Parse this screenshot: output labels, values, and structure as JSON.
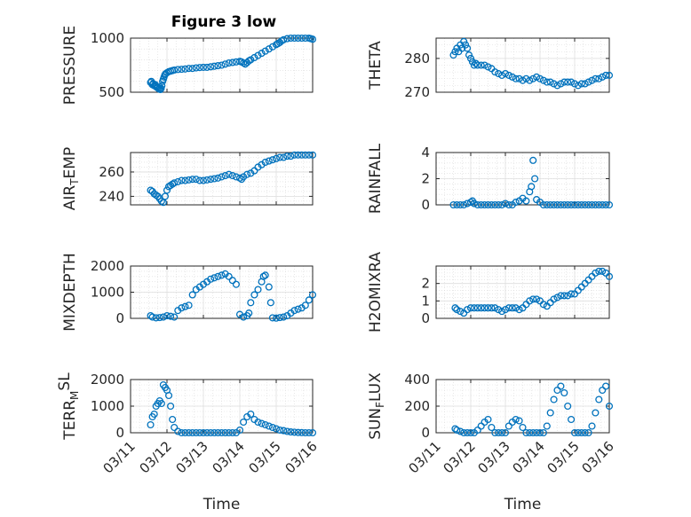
{
  "figure": {
    "title": "Figure 3 low",
    "x_axis_label": "Time",
    "x_tick_labels": [
      "03/11",
      "03/12",
      "03/13",
      "03/14",
      "03/15",
      "03/16"
    ],
    "marker_color": "#0072BD"
  },
  "chart_data": [
    {
      "type": "scatter",
      "ylabel": "PRESSURE",
      "ylabel_parts": [
        [
          "PRESSURE",
          ""
        ]
      ],
      "ylim": [
        500,
        1000
      ],
      "yticks": [
        500,
        1000
      ],
      "xlim": [
        "03/11",
        "03/16"
      ],
      "x_days": [
        0.55,
        0.57,
        0.6,
        0.62,
        0.65,
        0.68,
        0.7,
        0.72,
        0.75,
        0.78,
        0.8,
        0.82,
        0.84,
        0.86,
        0.88,
        0.9,
        0.92,
        0.94,
        0.96,
        1.0,
        1.05,
        1.1,
        1.15,
        1.2,
        1.3,
        1.4,
        1.5,
        1.6,
        1.7,
        1.8,
        1.9,
        2.0,
        2.1,
        2.2,
        2.3,
        2.4,
        2.5,
        2.6,
        2.7,
        2.8,
        2.9,
        3.0,
        3.05,
        3.1,
        3.15,
        3.2,
        3.25,
        3.3,
        3.4,
        3.5,
        3.6,
        3.7,
        3.8,
        3.9,
        4.0,
        4.05,
        4.1,
        4.15,
        4.2,
        4.3,
        4.4,
        4.5,
        4.6,
        4.7,
        4.8,
        4.9,
        4.95,
        5.0
      ],
      "y_values": [
        590,
        600,
        570,
        580,
        560,
        570,
        555,
        545,
        540,
        530,
        540,
        525,
        535,
        560,
        600,
        620,
        640,
        660,
        670,
        680,
        690,
        695,
        700,
        705,
        710,
        712,
        715,
        720,
        720,
        725,
        728,
        730,
        730,
        735,
        740,
        745,
        750,
        760,
        770,
        775,
        780,
        785,
        780,
        770,
        760,
        775,
        790,
        800,
        820,
        840,
        860,
        880,
        900,
        920,
        940,
        950,
        960,
        975,
        985,
        995,
        1000,
        1005,
        1005,
        1005,
        1005,
        1000,
        995,
        990
      ]
    },
    {
      "type": "scatter",
      "ylabel": "THETA",
      "ylabel_parts": [
        [
          "THETA",
          ""
        ]
      ],
      "ylim": [
        270,
        286
      ],
      "yticks": [
        270,
        280
      ],
      "xlim": [
        "03/11",
        "03/16"
      ],
      "x_days": [
        0.5,
        0.55,
        0.6,
        0.65,
        0.7,
        0.75,
        0.8,
        0.85,
        0.9,
        0.95,
        1.0,
        1.05,
        1.1,
        1.15,
        1.2,
        1.3,
        1.4,
        1.5,
        1.6,
        1.7,
        1.8,
        1.9,
        2.0,
        2.1,
        2.2,
        2.3,
        2.4,
        2.5,
        2.6,
        2.7,
        2.8,
        2.9,
        3.0,
        3.1,
        3.2,
        3.3,
        3.4,
        3.5,
        3.6,
        3.7,
        3.8,
        3.9,
        4.0,
        4.1,
        4.2,
        4.3,
        4.4,
        4.5,
        4.6,
        4.7,
        4.8,
        4.9,
        5.0
      ],
      "y_values": [
        281,
        282,
        283,
        282,
        284,
        283,
        285,
        284,
        283,
        281,
        280,
        279,
        278,
        278.5,
        278,
        278,
        278,
        277.5,
        277,
        276,
        275.5,
        275,
        275.5,
        275,
        274.5,
        274,
        274,
        273.5,
        274,
        273.5,
        274,
        274.5,
        274,
        273.5,
        273,
        273,
        272.5,
        272,
        272.5,
        273,
        273,
        273,
        272.5,
        272,
        272.5,
        272.5,
        273,
        273.5,
        274,
        274,
        274.5,
        275,
        275
      ]
    },
    {
      "type": "scatter",
      "ylabel": "AIR_TEMP",
      "ylabel_parts": [
        [
          "AIR",
          ""
        ],
        [
          "T",
          "sub"
        ],
        [
          "EMP",
          ""
        ]
      ],
      "ylim": [
        233,
        276
      ],
      "yticks": [
        240,
        260
      ],
      "xlim": [
        "03/11",
        "03/16"
      ],
      "x_days": [
        0.55,
        0.6,
        0.65,
        0.7,
        0.75,
        0.8,
        0.85,
        0.9,
        0.95,
        1.0,
        1.05,
        1.1,
        1.15,
        1.2,
        1.3,
        1.4,
        1.5,
        1.6,
        1.7,
        1.8,
        1.9,
        2.0,
        2.1,
        2.2,
        2.3,
        2.4,
        2.5,
        2.6,
        2.7,
        2.8,
        2.9,
        3.0,
        3.05,
        3.1,
        3.2,
        3.3,
        3.4,
        3.5,
        3.6,
        3.7,
        3.8,
        3.9,
        4.0,
        4.1,
        4.2,
        4.3,
        4.4,
        4.5,
        4.6,
        4.7,
        4.8,
        4.9,
        5.0
      ],
      "y_values": [
        245,
        244,
        242,
        241,
        240,
        238,
        236,
        235,
        240,
        245,
        248,
        249,
        250,
        251,
        252,
        253,
        253,
        253.5,
        254,
        254,
        253,
        253,
        253.5,
        254,
        254.5,
        255,
        256,
        257,
        258,
        257,
        256,
        255,
        254,
        256,
        258,
        259,
        261,
        264,
        266,
        268,
        269,
        270,
        271,
        272,
        272,
        273,
        273,
        274,
        274,
        274,
        274,
        274,
        274
      ]
    },
    {
      "type": "scatter",
      "ylabel": "RAINFALL",
      "ylabel_parts": [
        [
          "RAINFALL",
          ""
        ]
      ],
      "ylim": [
        0,
        4
      ],
      "yticks": [
        0,
        2,
        4
      ],
      "xlim": [
        "03/11",
        "03/16"
      ],
      "x_days": [
        0.5,
        0.6,
        0.7,
        0.8,
        0.9,
        1.0,
        1.05,
        1.1,
        1.2,
        1.3,
        1.4,
        1.5,
        1.6,
        1.7,
        1.8,
        1.9,
        2.0,
        2.1,
        2.2,
        2.3,
        2.4,
        2.5,
        2.6,
        2.7,
        2.75,
        2.8,
        2.85,
        2.9,
        3.0,
        3.1,
        3.2,
        3.3,
        3.4,
        3.5,
        3.6,
        3.7,
        3.8,
        3.9,
        4.0,
        4.1,
        4.2,
        4.3,
        4.4,
        4.5,
        4.6,
        4.7,
        4.8,
        4.9,
        5.0
      ],
      "y_values": [
        0,
        0,
        0,
        0,
        0.1,
        0.2,
        0.3,
        0.1,
        0,
        0,
        0,
        0,
        0,
        0,
        0,
        0,
        0.1,
        0,
        0,
        0.2,
        0.3,
        0.5,
        0.3,
        1.0,
        1.4,
        3.4,
        2.0,
        0.4,
        0.2,
        0,
        0,
        0,
        0,
        0,
        0,
        0,
        0,
        0,
        0,
        0,
        0,
        0,
        0,
        0,
        0,
        0,
        0,
        0,
        0
      ]
    },
    {
      "type": "scatter",
      "ylabel": "MIXDEPTH",
      "ylabel_parts": [
        [
          "MIXDEPTH",
          ""
        ]
      ],
      "ylim": [
        0,
        2000
      ],
      "yticks": [
        0,
        1000,
        2000
      ],
      "xlim": [
        "03/11",
        "03/16"
      ],
      "x_days": [
        0.55,
        0.6,
        0.7,
        0.8,
        0.9,
        1.0,
        1.1,
        1.2,
        1.3,
        1.4,
        1.5,
        1.6,
        1.7,
        1.8,
        1.9,
        2.0,
        2.1,
        2.2,
        2.3,
        2.4,
        2.5,
        2.6,
        2.7,
        2.8,
        2.9,
        3.0,
        3.1,
        3.2,
        3.25,
        3.3,
        3.4,
        3.5,
        3.6,
        3.65,
        3.7,
        3.8,
        3.85,
        3.9,
        4.0,
        4.1,
        4.2,
        4.3,
        4.4,
        4.5,
        4.6,
        4.7,
        4.8,
        4.9,
        5.0
      ],
      "y_values": [
        100,
        50,
        20,
        30,
        50,
        100,
        80,
        50,
        300,
        400,
        450,
        500,
        900,
        1100,
        1200,
        1300,
        1400,
        1500,
        1550,
        1600,
        1650,
        1700,
        1600,
        1450,
        1300,
        150,
        50,
        100,
        200,
        600,
        900,
        1100,
        1400,
        1600,
        1650,
        1200,
        600,
        20,
        10,
        30,
        50,
        100,
        200,
        300,
        350,
        400,
        500,
        700,
        900
      ]
    },
    {
      "type": "scatter",
      "ylabel": "H2OMIXRA",
      "ylabel_parts": [
        [
          "H2OMIXRA",
          ""
        ]
      ],
      "ylim": [
        0,
        3
      ],
      "yticks": [
        0,
        1,
        2
      ],
      "xlim": [
        "03/11",
        "03/16"
      ],
      "x_days": [
        0.55,
        0.6,
        0.7,
        0.8,
        0.9,
        1.0,
        1.1,
        1.2,
        1.3,
        1.4,
        1.5,
        1.6,
        1.7,
        1.8,
        1.9,
        2.0,
        2.1,
        2.2,
        2.3,
        2.4,
        2.5,
        2.6,
        2.7,
        2.8,
        2.9,
        3.0,
        3.1,
        3.2,
        3.3,
        3.4,
        3.5,
        3.6,
        3.7,
        3.8,
        3.9,
        4.0,
        4.1,
        4.2,
        4.3,
        4.4,
        4.5,
        4.6,
        4.7,
        4.8,
        4.9,
        5.0
      ],
      "y_values": [
        0.6,
        0.5,
        0.4,
        0.3,
        0.5,
        0.6,
        0.6,
        0.6,
        0.6,
        0.6,
        0.6,
        0.6,
        0.6,
        0.5,
        0.4,
        0.5,
        0.6,
        0.6,
        0.6,
        0.5,
        0.6,
        0.8,
        1.0,
        1.1,
        1.1,
        1.0,
        0.8,
        0.7,
        0.9,
        1.1,
        1.2,
        1.3,
        1.3,
        1.3,
        1.4,
        1.4,
        1.6,
        1.8,
        2.0,
        2.2,
        2.4,
        2.6,
        2.7,
        2.7,
        2.6,
        2.4
      ]
    },
    {
      "type": "scatter",
      "ylabel": "TERR_MSL",
      "ylabel_parts": [
        [
          "TERR",
          ""
        ],
        [
          "M",
          "sub"
        ],
        [
          "SL",
          "sup"
        ]
      ],
      "ylim": [
        0,
        2000
      ],
      "yticks": [
        0,
        1000,
        2000
      ],
      "xlim": [
        "03/11",
        "03/16"
      ],
      "x_days": [
        0.55,
        0.6,
        0.65,
        0.7,
        0.75,
        0.8,
        0.85,
        0.9,
        0.95,
        1.0,
        1.05,
        1.1,
        1.15,
        1.2,
        1.3,
        1.4,
        1.5,
        1.6,
        1.7,
        1.8,
        1.9,
        2.0,
        2.1,
        2.2,
        2.3,
        2.4,
        2.5,
        2.6,
        2.7,
        2.8,
        2.9,
        3.0,
        3.1,
        3.2,
        3.3,
        3.4,
        3.5,
        3.6,
        3.7,
        3.8,
        3.9,
        4.0,
        4.1,
        4.2,
        4.3,
        4.4,
        4.5,
        4.6,
        4.7,
        4.8,
        4.9,
        5.0
      ],
      "y_values": [
        300,
        600,
        700,
        1000,
        1100,
        1200,
        1100,
        1800,
        1700,
        1600,
        1400,
        1000,
        500,
        200,
        50,
        0,
        0,
        0,
        0,
        0,
        0,
        0,
        0,
        0,
        0,
        0,
        0,
        0,
        0,
        0,
        0,
        100,
        400,
        600,
        700,
        500,
        400,
        350,
        300,
        250,
        200,
        150,
        100,
        80,
        50,
        30,
        20,
        10,
        5,
        0,
        0,
        0
      ]
    },
    {
      "type": "scatter",
      "ylabel": "SUN_FLUX",
      "ylabel_parts": [
        [
          "SUN",
          ""
        ],
        [
          "F",
          "sub"
        ],
        [
          "LUX",
          ""
        ]
      ],
      "ylim": [
        0,
        400
      ],
      "yticks": [
        0,
        200,
        400
      ],
      "xlim": [
        "03/11",
        "03/16"
      ],
      "x_days": [
        0.55,
        0.6,
        0.7,
        0.8,
        0.9,
        1.0,
        1.1,
        1.2,
        1.3,
        1.4,
        1.5,
        1.6,
        1.7,
        1.8,
        1.9,
        2.0,
        2.1,
        2.2,
        2.3,
        2.4,
        2.5,
        2.6,
        2.7,
        2.8,
        2.9,
        3.0,
        3.1,
        3.2,
        3.3,
        3.4,
        3.5,
        3.6,
        3.7,
        3.8,
        3.9,
        4.0,
        4.1,
        4.2,
        4.3,
        4.4,
        4.5,
        4.6,
        4.7,
        4.8,
        4.9,
        5.0
      ],
      "y_values": [
        30,
        20,
        10,
        0,
        0,
        0,
        0,
        20,
        50,
        80,
        100,
        40,
        0,
        0,
        0,
        0,
        50,
        80,
        100,
        90,
        40,
        0,
        0,
        0,
        0,
        0,
        0,
        50,
        150,
        250,
        320,
        350,
        300,
        200,
        100,
        0,
        0,
        0,
        0,
        0,
        50,
        150,
        250,
        320,
        350,
        200
      ]
    }
  ]
}
